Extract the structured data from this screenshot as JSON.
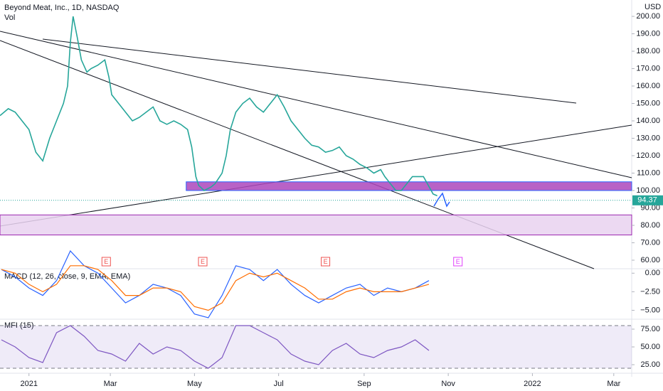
{
  "chart_data": [
    {
      "type": "line",
      "title": "Beyond Meat, Inc., 1D, NASDAQ",
      "subtitle": "Vol",
      "y_axis_label": "USD",
      "xlim": [
        -21,
        437
      ],
      "ylim": [
        55.1,
        209.4
      ],
      "yticks": [
        {
          "value": 60,
          "label": "60.00"
        },
        {
          "value": 70,
          "label": "70.00"
        },
        {
          "value": 80,
          "label": "80.00"
        },
        {
          "value": 90,
          "label": "90.00"
        },
        {
          "value": 100,
          "label": "100.00"
        },
        {
          "value": 110,
          "label": "110.00"
        },
        {
          "value": 120,
          "label": "120.00"
        },
        {
          "value": 130,
          "label": "130.00"
        },
        {
          "value": 140,
          "label": "140.00"
        },
        {
          "value": 150,
          "label": "150.00"
        },
        {
          "value": 160,
          "label": "160.00"
        },
        {
          "value": 170,
          "label": "170.00"
        },
        {
          "value": 180,
          "label": "180.00"
        },
        {
          "value": 190,
          "label": "190.00"
        },
        {
          "value": 200,
          "label": "200.00"
        }
      ],
      "x": [
        -21,
        -15,
        -10,
        -5,
        0,
        5,
        10,
        15,
        20,
        25,
        28,
        30,
        32,
        35,
        38,
        42,
        45,
        50,
        55,
        58,
        60,
        65,
        70,
        75,
        80,
        85,
        90,
        95,
        100,
        105,
        110,
        115,
        118,
        121,
        123,
        127,
        132,
        135,
        140,
        143,
        146,
        150,
        155,
        160,
        165,
        170,
        175,
        180,
        185,
        190,
        195,
        200,
        205,
        210,
        215,
        220,
        225,
        230,
        235,
        240,
        245,
        250,
        255,
        258,
        262,
        266,
        270,
        274,
        278,
        282,
        286,
        293,
        296
      ],
      "values": [
        143,
        147,
        145,
        140,
        135,
        122,
        117,
        130,
        140,
        150,
        160,
        185,
        200,
        188,
        175,
        168,
        170,
        172,
        175,
        165,
        155,
        150,
        145,
        140,
        142,
        145,
        148,
        140,
        138,
        140,
        138,
        135,
        125,
        108,
        103,
        100,
        102,
        104,
        110,
        120,
        135,
        145,
        150,
        153,
        148,
        145,
        150,
        155,
        148,
        140,
        135,
        130,
        126,
        125,
        122,
        123,
        125,
        120,
        118,
        115,
        113,
        110,
        112,
        108,
        104,
        100,
        100,
        104,
        108,
        108,
        108,
        98,
        97
      ],
      "color": "#26a69a",
      "zones": [
        {
          "from": 114,
          "low": 100,
          "high": 105,
          "color": "#ab47bc"
        },
        {
          "from": -21,
          "low": 74.5,
          "high": 86,
          "color": "#e9d2f0"
        }
      ],
      "last_price": 94.37,
      "earnings": [
        {
          "day": 56,
          "label": "E"
        },
        {
          "day": 126,
          "label": "E"
        },
        {
          "day": 215,
          "label": "E"
        },
        {
          "day": 311,
          "label": "E"
        }
      ]
    },
    {
      "type": "line",
      "title": "MACD (12, 26, close, 9, EMA, EMA)",
      "xlim": [
        -21,
        437
      ],
      "ylim": [
        -6.2,
        0.6
      ],
      "yticks": [
        {
          "value": 0,
          "label": "0.00"
        },
        {
          "value": -2.5,
          "label": "−2.50"
        },
        {
          "value": -5,
          "label": "−5.00"
        }
      ],
      "x": [
        -20,
        -10,
        0,
        10,
        20,
        30,
        40,
        50,
        60,
        70,
        80,
        90,
        100,
        110,
        120,
        130,
        140,
        150,
        160,
        170,
        180,
        190,
        200,
        210,
        220,
        230,
        240,
        250,
        260,
        270,
        280,
        290
      ],
      "series": [
        {
          "color": "#2962ff",
          "values": [
            0.5,
            -0.5,
            -2,
            -3,
            -1,
            3,
            1,
            0,
            -2,
            -4,
            -3,
            -1.5,
            -2,
            -3,
            -5.5,
            -6,
            -3,
            1,
            0.5,
            -1,
            0.5,
            -1.5,
            -3,
            -4,
            -3,
            -2,
            -1.5,
            -3,
            -2,
            -2.5,
            -2,
            -1
          ]
        },
        {
          "color": "#ff6d00",
          "values": [
            0.5,
            0,
            -1.5,
            -2.5,
            -1.5,
            1,
            1,
            0.5,
            -1,
            -3,
            -3,
            -2,
            -2,
            -2.5,
            -4.5,
            -5,
            -4,
            -1,
            0,
            -0.5,
            0,
            -1,
            -2,
            -3.5,
            -3.5,
            -2.5,
            -2,
            -2.5,
            -2.5,
            -2.5,
            -2,
            -1.5
          ]
        }
      ]
    },
    {
      "type": "line",
      "title": "MFI (15)",
      "xlim": [
        -21,
        437
      ],
      "ylim": [
        13,
        89
      ],
      "yticks": [
        {
          "value": 25,
          "label": "25.00"
        },
        {
          "value": 50,
          "label": "50.00"
        },
        {
          "value": 75,
          "label": "75.00"
        }
      ],
      "band": [
        20,
        80
      ],
      "x": [
        -20,
        -10,
        0,
        10,
        20,
        30,
        40,
        50,
        60,
        70,
        80,
        90,
        100,
        110,
        120,
        130,
        140,
        150,
        160,
        170,
        180,
        190,
        200,
        210,
        220,
        230,
        240,
        250,
        260,
        270,
        280,
        290
      ],
      "values": [
        60,
        50,
        35,
        28,
        70,
        80,
        65,
        45,
        40,
        30,
        55,
        40,
        50,
        45,
        30,
        20,
        35,
        80,
        80,
        70,
        60,
        40,
        30,
        25,
        45,
        55,
        40,
        35,
        45,
        50,
        60,
        45
      ],
      "color": "#7e57c2",
      "xticks": [
        {
          "value": 0,
          "label": "2021"
        },
        {
          "value": 59,
          "label": "Mar"
        },
        {
          "value": 120,
          "label": "May"
        },
        {
          "value": 181,
          "label": "Jul"
        },
        {
          "value": 243,
          "label": "Sep"
        },
        {
          "value": 304,
          "label": "Nov"
        },
        {
          "value": 365,
          "label": "2022"
        },
        {
          "value": 424,
          "label": "Mar"
        }
      ]
    }
  ]
}
